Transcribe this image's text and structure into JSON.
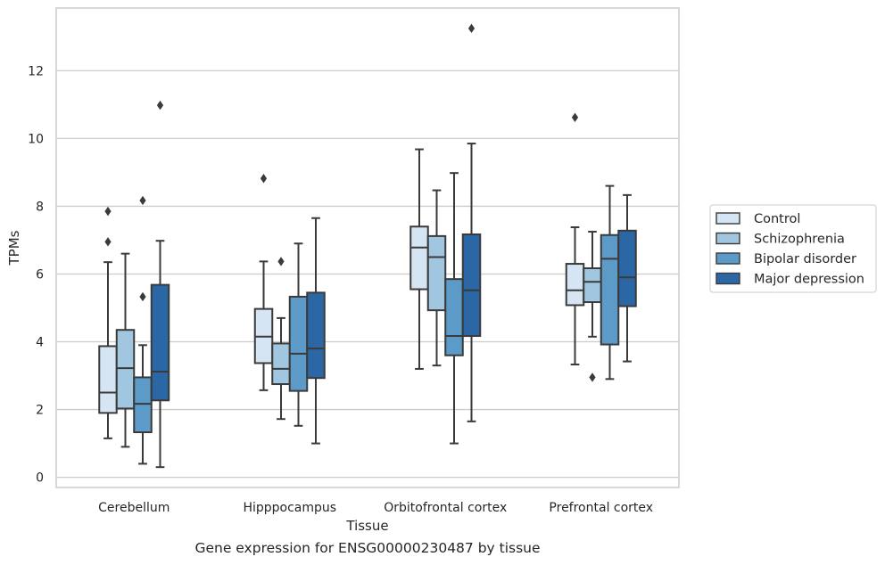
{
  "chart_data": {
    "type": "box",
    "xlabel": "Tissue",
    "ylabel": "TPMs",
    "caption": "Gene expression for ENSG00000230487 by tissue",
    "ylim": [
      -0.3,
      13.85
    ],
    "yticks": [
      0,
      2,
      4,
      6,
      8,
      10,
      12
    ],
    "grid": "horizontal",
    "legend_position": "right",
    "categories": [
      "Cerebellum",
      "Hipppocampus",
      "Orbitofrontal cortex",
      "Prefrontal cortex"
    ],
    "series": [
      {
        "name": "Control",
        "color": "#d5e5f3",
        "boxes": [
          {
            "whislo": 1.15,
            "q1": 1.9,
            "med": 2.5,
            "q3": 3.87,
            "whishi": 6.35,
            "fliers": [
              6.95,
              7.85
            ]
          },
          {
            "whislo": 2.57,
            "q1": 3.37,
            "med": 4.15,
            "q3": 4.97,
            "whishi": 6.37,
            "fliers": [
              8.82
            ]
          },
          {
            "whislo": 3.2,
            "q1": 5.55,
            "med": 6.78,
            "q3": 7.4,
            "whishi": 9.68,
            "fliers": []
          },
          {
            "whislo": 3.33,
            "q1": 5.08,
            "med": 5.52,
            "q3": 6.3,
            "whishi": 7.38,
            "fliers": [
              10.62
            ]
          }
        ]
      },
      {
        "name": "Schizophrenia",
        "color": "#a1c6df",
        "boxes": [
          {
            "whislo": 0.9,
            "q1": 2.03,
            "med": 3.22,
            "q3": 4.35,
            "whishi": 6.6,
            "fliers": []
          },
          {
            "whislo": 1.72,
            "q1": 2.75,
            "med": 3.2,
            "q3": 3.95,
            "whishi": 4.7,
            "fliers": [
              6.37
            ]
          },
          {
            "whislo": 3.3,
            "q1": 4.93,
            "med": 6.5,
            "q3": 7.12,
            "whishi": 8.47,
            "fliers": []
          },
          {
            "whislo": 4.15,
            "q1": 5.17,
            "med": 5.77,
            "q3": 6.17,
            "whishi": 7.25,
            "fliers": [
              2.95
            ]
          }
        ]
      },
      {
        "name": "Bipolar disorder",
        "color": "#5c9bc8",
        "boxes": [
          {
            "whislo": 0.4,
            "q1": 1.33,
            "med": 2.17,
            "q3": 2.95,
            "whishi": 3.9,
            "fliers": [
              5.33,
              8.17
            ]
          },
          {
            "whislo": 1.52,
            "q1": 2.55,
            "med": 3.65,
            "q3": 5.33,
            "whishi": 6.9,
            "fliers": []
          },
          {
            "whislo": 1.0,
            "q1": 3.6,
            "med": 4.17,
            "q3": 5.85,
            "whishi": 8.98,
            "fliers": []
          },
          {
            "whislo": 2.9,
            "q1": 3.92,
            "med": 6.45,
            "q3": 7.15,
            "whishi": 8.6,
            "fliers": []
          }
        ]
      },
      {
        "name": "Major depression",
        "color": "#2c67a5",
        "boxes": [
          {
            "whislo": 0.3,
            "q1": 2.27,
            "med": 3.12,
            "q3": 5.68,
            "whishi": 6.98,
            "fliers": [
              10.98
            ]
          },
          {
            "whislo": 1.0,
            "q1": 2.93,
            "med": 3.8,
            "q3": 5.45,
            "whishi": 7.65,
            "fliers": []
          },
          {
            "whislo": 1.65,
            "q1": 4.17,
            "med": 5.52,
            "q3": 7.17,
            "whishi": 9.85,
            "fliers": [
              13.25
            ]
          },
          {
            "whislo": 3.42,
            "q1": 5.05,
            "med": 5.9,
            "q3": 7.28,
            "whishi": 8.33,
            "fliers": []
          }
        ]
      }
    ]
  }
}
